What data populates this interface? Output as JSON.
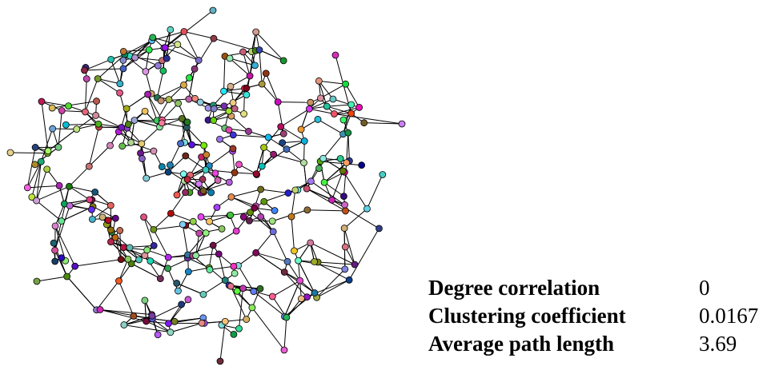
{
  "stats": {
    "rows": [
      {
        "label": "Degree correlation",
        "value": 0
      },
      {
        "label": "Clustering coefficient",
        "value": 0.0167
      },
      {
        "label": "Average path length",
        "value": 3.69
      }
    ]
  }
}
